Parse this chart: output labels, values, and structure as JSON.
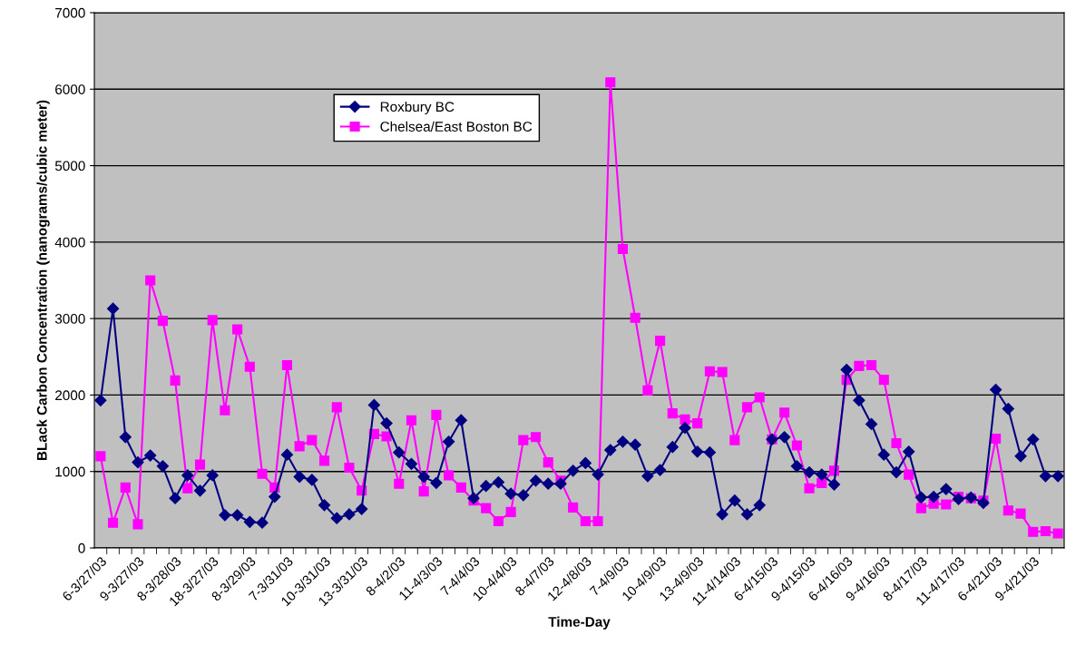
{
  "chart_data": {
    "type": "line",
    "xlabel": "Time-Day",
    "ylabel": "BLack Carbon Concentration (nanograms/cubic meter)",
    "categories": [
      "6-3/27/03",
      null,
      null,
      "9-3/27/03",
      null,
      null,
      "8-3/28/03",
      null,
      null,
      "18-3/27/03",
      null,
      null,
      "8-3/29/03",
      null,
      null,
      "7-3/31/03",
      null,
      null,
      "10-3/31/03",
      null,
      null,
      "13-3/31/03",
      null,
      null,
      "8-4/2/03",
      null,
      null,
      "11-4/3/03",
      null,
      null,
      "7-4/4/03",
      null,
      null,
      "10-4/4/03",
      null,
      null,
      "8-4/7/03",
      null,
      null,
      "12-4/8/03",
      null,
      null,
      "7-4/9/03",
      null,
      null,
      "10-4/9/03",
      null,
      null,
      "13-4/9/03",
      null,
      null,
      "11-4/14/03",
      null,
      null,
      "6-4/15/03",
      null,
      null,
      "9-4/15/03",
      null,
      null,
      "6-4/16/03",
      null,
      null,
      "9-4/16/03",
      null,
      null,
      "8-4/17/03",
      null,
      null,
      "11-4/17/03",
      null,
      null,
      "6-4/21/03",
      null,
      null,
      "9-4/21/03",
      null,
      null
    ],
    "series": [
      {
        "name": "Roxbury BC",
        "color": "#000080",
        "marker": "diamond",
        "values": [
          1930,
          3130,
          1450,
          1120,
          1210,
          1070,
          650,
          950,
          750,
          950,
          430,
          430,
          340,
          330,
          670,
          1220,
          930,
          890,
          560,
          390,
          440,
          510,
          1870,
          1630,
          1250,
          1100,
          930,
          850,
          1390,
          1670,
          650,
          810,
          860,
          710,
          690,
          880,
          840,
          840,
          1010,
          1110,
          960,
          1280,
          1390,
          1350,
          940,
          1020,
          1320,
          1570,
          1260,
          1250,
          440,
          620,
          440,
          560,
          1420,
          1450,
          1070,
          990,
          960,
          830,
          2330,
          1930,
          1620,
          1220,
          990,
          1260,
          660,
          670,
          770,
          640,
          660,
          590,
          2070,
          1820,
          1200,
          1420,
          940,
          940
        ]
      },
      {
        "name": "Chelsea/East Boston BC",
        "color": "#ff00ff",
        "marker": "square",
        "values": [
          1200,
          330,
          790,
          310,
          3500,
          2970,
          2190,
          780,
          1090,
          2980,
          1800,
          2860,
          2370,
          970,
          790,
          2390,
          1330,
          1410,
          1140,
          1840,
          1050,
          750,
          1490,
          1460,
          840,
          1670,
          740,
          1740,
          950,
          790,
          620,
          520,
          350,
          470,
          1410,
          1450,
          1120,
          880,
          530,
          350,
          350,
          6090,
          3910,
          3010,
          2060,
          2710,
          1760,
          1680,
          1630,
          2310,
          2300,
          1410,
          1840,
          1970,
          1420,
          1770,
          1340,
          780,
          850,
          1010,
          2200,
          2380,
          2390,
          2200,
          1370,
          960,
          520,
          580,
          570,
          670,
          650,
          620,
          1430,
          490,
          450,
          210,
          220,
          190
        ]
      }
    ],
    "ylim": [
      0,
      7000
    ],
    "yticks": [
      0,
      1000,
      2000,
      3000,
      4000,
      5000,
      6000,
      7000
    ],
    "grid": "y",
    "legend": "top left",
    "line_style": "solid"
  }
}
